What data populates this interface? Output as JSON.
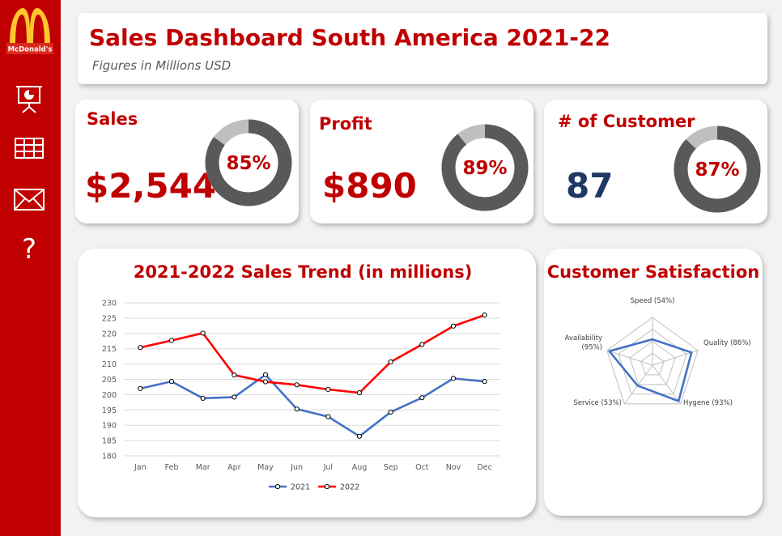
{
  "sidebar": {
    "logo_text": "McDonald's",
    "icons": [
      "presentation-icon",
      "table-icon",
      "mail-icon",
      "help-icon"
    ]
  },
  "header": {
    "title": "Sales Dashboard South America 2021-22",
    "subtitle": "Figures in Millions USD"
  },
  "kpis": [
    {
      "label": "Sales",
      "value": "$2,544",
      "percent": 85,
      "percent_label": "85%",
      "value_color": "#c00000"
    },
    {
      "label": "Profit",
      "value": "$890",
      "percent": 89,
      "percent_label": "89%",
      "value_color": "#c00000"
    },
    {
      "label": "# of Customer",
      "value": "87",
      "percent": 87,
      "percent_label": "87%",
      "value_color": "#1f3864"
    }
  ],
  "colors": {
    "brand_red": "#c00000",
    "series_2021": "#4472c4",
    "series_2022": "#ff0000",
    "donut_dark": "#595959",
    "donut_light": "#bfbfbf"
  },
  "chart_data": [
    {
      "type": "line",
      "title": "2021-2022 Sales Trend (in millions)",
      "categories": [
        "Jan",
        "Feb",
        "Mar",
        "Apr",
        "May",
        "Jun",
        "Jul",
        "Aug",
        "Sep",
        "Oct",
        "Nov",
        "Dec"
      ],
      "series": [
        {
          "name": "2021",
          "values": [
            202,
            204.3,
            198.8,
            199.2,
            206.5,
            195.3,
            192.8,
            186.4,
            194.3,
            199,
            205.3,
            204.3
          ]
        },
        {
          "name": "2022",
          "values": [
            215.4,
            217.7,
            220.1,
            206.4,
            204.2,
            203.2,
            201.7,
            200.6,
            210.7,
            216.4,
            222.4,
            226
          ]
        }
      ],
      "ylim": [
        180,
        230
      ],
      "yticks": [
        180,
        185,
        190,
        195,
        200,
        205,
        210,
        215,
        220,
        225,
        230
      ],
      "legend": "bottom",
      "grid": true
    },
    {
      "type": "radar",
      "title": "Customer Satisfaction",
      "axes": [
        "Speed (54%)",
        "Quality (86%)",
        "Hygene (93%)",
        "Service (53%)",
        "Availability (95%)"
      ],
      "values": [
        54,
        86,
        93,
        53,
        95
      ],
      "rmax": 100
    }
  ]
}
